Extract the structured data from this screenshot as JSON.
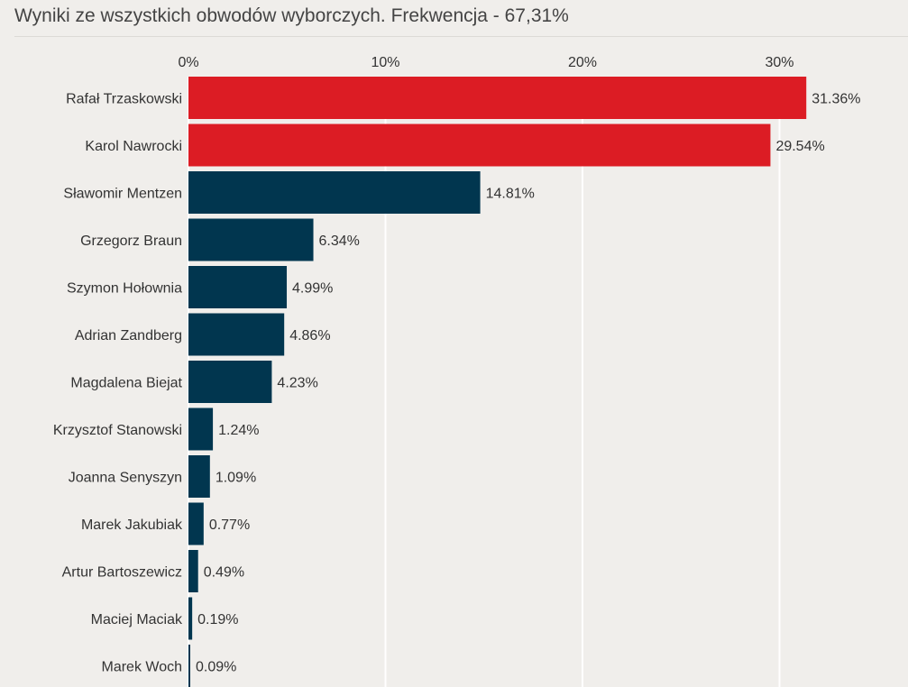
{
  "chart_data": {
    "type": "bar",
    "orientation": "horizontal",
    "title": "Wyniki ze wszystkich obwodów wyborczych. Frekwencja - 67,31%",
    "xlim": [
      0,
      35
    ],
    "x_ticks": [
      0,
      10,
      20,
      30
    ],
    "x_tick_labels": [
      "0%",
      "10%",
      "20%",
      "30%"
    ],
    "grid": true,
    "categories": [
      "Rafał Trzaskowski",
      "Karol Nawrocki",
      "Sławomir Mentzen",
      "Grzegorz Braun",
      "Szymon Hołownia",
      "Adrian Zandberg",
      "Magdalena Biejat",
      "Krzysztof Stanowski",
      "Joanna Senyszyn",
      "Marek Jakubiak",
      "Artur Bartoszewicz",
      "Maciej Maciak",
      "Marek Woch"
    ],
    "values": [
      31.36,
      29.54,
      14.81,
      6.34,
      4.99,
      4.86,
      4.23,
      1.24,
      1.09,
      0.77,
      0.49,
      0.19,
      0.09
    ],
    "value_labels": [
      "31.36%",
      "29.54%",
      "14.81%",
      "6.34%",
      "4.99%",
      "4.86%",
      "4.23%",
      "1.24%",
      "1.09%",
      "0.77%",
      "0.49%",
      "0.19%",
      "0.09%"
    ],
    "colors": [
      "#dc1c24",
      "#dc1c24",
      "#01364f",
      "#01364f",
      "#01364f",
      "#01364f",
      "#01364f",
      "#01364f",
      "#01364f",
      "#01364f",
      "#01364f",
      "#01364f",
      "#01364f"
    ]
  }
}
